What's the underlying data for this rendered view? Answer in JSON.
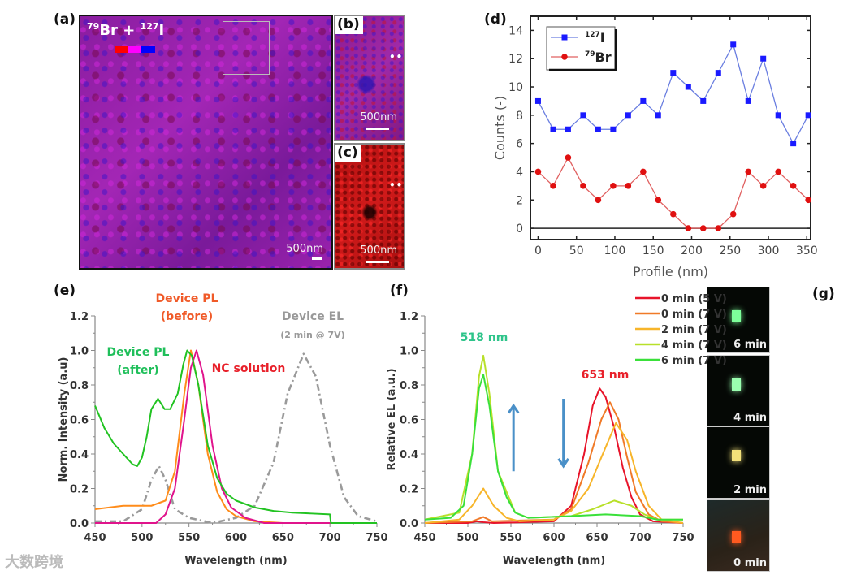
{
  "panels": {
    "a": {
      "label": "(a)",
      "title_mass1": "79",
      "title_el1": "Br",
      "title_plus": "+",
      "title_mass2": "127",
      "title_el2": "I",
      "scale": "500nm",
      "colorbar": [
        "#ff0000",
        "#ff00ff",
        "#0000ff"
      ]
    },
    "b": {
      "label": "(b)",
      "scale": "500nm",
      "marker": "••••"
    },
    "c": {
      "label": "(c)",
      "scale": "500nm",
      "marker": "••••"
    },
    "d": {
      "label": "(d)"
    },
    "e": {
      "label": "(e)"
    },
    "f": {
      "label": "(f)"
    },
    "g": {
      "label": "(g)",
      "photos": [
        {
          "caption": "6 min",
          "glow": "#7dff9a"
        },
        {
          "caption": "4 min",
          "glow": "#9affb0"
        },
        {
          "caption": "2 min",
          "glow": "#f2e07a"
        },
        {
          "caption": "0 min",
          "glow": "#ff5a20"
        }
      ]
    }
  },
  "watermark": "大数跨境",
  "chart_data": [
    {
      "id": "d",
      "type": "line",
      "xlabel": "Profile (nm)",
      "ylabel": "Counts (-)",
      "xlim": [
        -10,
        355
      ],
      "ylim": [
        -0.8,
        15
      ],
      "xticks": [
        0,
        50,
        100,
        150,
        200,
        250,
        300,
        350
      ],
      "yticks": [
        0,
        2,
        4,
        6,
        8,
        10,
        12,
        14
      ],
      "legend": "top-left",
      "x": [
        0,
        19.6,
        39.1,
        58.7,
        78.2,
        97.8,
        117.3,
        136.9,
        156.4,
        176,
        195.6,
        215.1,
        234.7,
        254.2,
        273.8,
        293.3,
        312.9,
        332.4,
        352
      ],
      "series": [
        {
          "mass": "127",
          "element": "I",
          "color": "#1a1aff",
          "line": "#6a7ee0",
          "marker": "square",
          "values": [
            9,
            7,
            7,
            8,
            7,
            7,
            8,
            9,
            8,
            11,
            10,
            9,
            11,
            13,
            9,
            12,
            8,
            6,
            8
          ]
        },
        {
          "mass": "79",
          "element": "Br",
          "color": "#e01010",
          "line": "#e06060",
          "marker": "circle",
          "values": [
            4,
            3,
            5,
            3,
            2,
            3,
            3,
            4,
            2,
            1,
            0,
            0,
            0,
            1,
            4,
            3,
            4,
            3,
            2
          ]
        }
      ]
    },
    {
      "id": "e",
      "type": "line",
      "xlabel": "Wavelength (nm)",
      "ylabel": "Norm. Intensity (a.u)",
      "xlim": [
        450,
        750
      ],
      "ylim": [
        0,
        1.2
      ],
      "xticks": [
        450,
        500,
        550,
        600,
        650,
        700,
        750
      ],
      "yticks": [
        "0.0",
        "0.2",
        "0.4",
        "0.6",
        "0.8",
        "1.0",
        "1.2"
      ],
      "series": [
        {
          "name": "Device PL (after)",
          "lines": [
            "Device PL",
            "(after)"
          ],
          "color": "#22c322",
          "label_color": "#1fbf5a",
          "dash": "",
          "points": [
            [
              450,
              0.68
            ],
            [
              460,
              0.55
            ],
            [
              470,
              0.46
            ],
            [
              480,
              0.4
            ],
            [
              490,
              0.34
            ],
            [
              495,
              0.33
            ],
            [
              500,
              0.38
            ],
            [
              505,
              0.5
            ],
            [
              510,
              0.66
            ],
            [
              517,
              0.72
            ],
            [
              524,
              0.66
            ],
            [
              530,
              0.66
            ],
            [
              538,
              0.75
            ],
            [
              544,
              0.92
            ],
            [
              548,
              1.0
            ],
            [
              553,
              0.97
            ],
            [
              560,
              0.8
            ],
            [
              570,
              0.45
            ],
            [
              580,
              0.26
            ],
            [
              590,
              0.17
            ],
            [
              600,
              0.13
            ],
            [
              620,
              0.09
            ],
            [
              640,
              0.07
            ],
            [
              660,
              0.06
            ],
            [
              680,
              0.055
            ],
            [
              700,
              0.05
            ],
            [
              701,
              0.0
            ],
            [
              750,
              0.0
            ]
          ]
        },
        {
          "name": "Device PL (before)",
          "lines": [
            "Device PL",
            "(before)"
          ],
          "color": "#ff8c1a",
          "label_color": "#f05a28",
          "dash": "",
          "points": [
            [
              450,
              0.08
            ],
            [
              480,
              0.1
            ],
            [
              510,
              0.1
            ],
            [
              525,
              0.13
            ],
            [
              535,
              0.3
            ],
            [
              545,
              0.75
            ],
            [
              552,
              1.0
            ],
            [
              560,
              0.8
            ],
            [
              570,
              0.4
            ],
            [
              580,
              0.18
            ],
            [
              590,
              0.08
            ],
            [
              600,
              0.04
            ],
            [
              620,
              0.01
            ],
            [
              650,
              0.0
            ],
            [
              750,
              0.0
            ]
          ]
        },
        {
          "name": "NC solution",
          "lines": [
            "NC solution"
          ],
          "color": "#e0148c",
          "label_color": "#e8202a",
          "dash": "",
          "points": [
            [
              450,
              0
            ],
            [
              515,
              0
            ],
            [
              525,
              0.05
            ],
            [
              535,
              0.2
            ],
            [
              545,
              0.6
            ],
            [
              552,
              0.9
            ],
            [
              558,
              1.0
            ],
            [
              565,
              0.86
            ],
            [
              575,
              0.45
            ],
            [
              585,
              0.2
            ],
            [
              595,
              0.09
            ],
            [
              610,
              0.03
            ],
            [
              630,
              0.0
            ],
            [
              750,
              0.0
            ]
          ]
        },
        {
          "name": "Device EL (2 min @ 7V)",
          "lines": [
            "Device EL",
            "(2 min @ 7V)"
          ],
          "color": "#9a9a9a",
          "label_color": "#999999",
          "dash": "8 4 2 4",
          "points": [
            [
              450,
              0.01
            ],
            [
              480,
              0.01
            ],
            [
              500,
              0.08
            ],
            [
              510,
              0.25
            ],
            [
              518,
              0.33
            ],
            [
              525,
              0.25
            ],
            [
              535,
              0.08
            ],
            [
              550,
              0.03
            ],
            [
              575,
              0.0
            ],
            [
              600,
              0.03
            ],
            [
              620,
              0.1
            ],
            [
              640,
              0.35
            ],
            [
              655,
              0.75
            ],
            [
              672,
              0.98
            ],
            [
              685,
              0.85
            ],
            [
              700,
              0.45
            ],
            [
              715,
              0.15
            ],
            [
              730,
              0.04
            ],
            [
              750,
              0.01
            ]
          ]
        }
      ]
    },
    {
      "id": "f",
      "type": "line",
      "xlabel": "Wavelength (nm)",
      "ylabel": "Relative EL (a.u.)",
      "xlim": [
        450,
        750
      ],
      "ylim": [
        0,
        1.2
      ],
      "xticks": [
        450,
        500,
        550,
        600,
        650,
        700,
        750
      ],
      "yticks": [
        "0.0",
        "0.2",
        "0.4",
        "0.6",
        "0.8",
        "1.0",
        "1.2"
      ],
      "legend": "top-right",
      "annotations": [
        {
          "text": "518 nm",
          "color": "#2ec48a"
        },
        {
          "text": "653 nm",
          "color": "#e8202a"
        }
      ],
      "arrows": [
        {
          "direction": "up",
          "x": 553,
          "color": "#4a90c8"
        },
        {
          "direction": "down",
          "x": 611,
          "color": "#4a90c8"
        }
      ],
      "series": [
        {
          "name": "0 min (5 V)",
          "color": "#e8142a",
          "points": [
            [
              450,
              0
            ],
            [
              500,
              0
            ],
            [
              510,
              0.01
            ],
            [
              518,
              0.005
            ],
            [
              530,
              0
            ],
            [
              600,
              0.01
            ],
            [
              620,
              0.1
            ],
            [
              635,
              0.4
            ],
            [
              645,
              0.68
            ],
            [
              653,
              0.78
            ],
            [
              660,
              0.73
            ],
            [
              670,
              0.55
            ],
            [
              680,
              0.32
            ],
            [
              690,
              0.15
            ],
            [
              700,
              0.05
            ],
            [
              715,
              0.01
            ],
            [
              750,
              0
            ]
          ]
        },
        {
          "name": "0 min (7 V)",
          "color": "#f07a28",
          "points": [
            [
              450,
              0
            ],
            [
              505,
              0.01
            ],
            [
              518,
              0.035
            ],
            [
              528,
              0.01
            ],
            [
              600,
              0.02
            ],
            [
              620,
              0.08
            ],
            [
              640,
              0.35
            ],
            [
              655,
              0.6
            ],
            [
              665,
              0.7
            ],
            [
              675,
              0.6
            ],
            [
              685,
              0.38
            ],
            [
              695,
              0.18
            ],
            [
              710,
              0.05
            ],
            [
              725,
              0.01
            ],
            [
              750,
              0
            ]
          ]
        },
        {
          "name": "2 min (7 V)",
          "color": "#f7b52a",
          "points": [
            [
              450,
              0
            ],
            [
              490,
              0.02
            ],
            [
              505,
              0.1
            ],
            [
              518,
              0.2
            ],
            [
              530,
              0.1
            ],
            [
              545,
              0.03
            ],
            [
              560,
              0.01
            ],
            [
              600,
              0.02
            ],
            [
              620,
              0.07
            ],
            [
              640,
              0.2
            ],
            [
              655,
              0.38
            ],
            [
              672,
              0.58
            ],
            [
              685,
              0.48
            ],
            [
              695,
              0.3
            ],
            [
              710,
              0.1
            ],
            [
              725,
              0.02
            ],
            [
              750,
              0
            ]
          ]
        },
        {
          "name": "4 min (7 V)",
          "color": "#b8e02a",
          "points": [
            [
              450,
              0.02
            ],
            [
              490,
              0.06
            ],
            [
              505,
              0.4
            ],
            [
              513,
              0.85
            ],
            [
              518,
              0.97
            ],
            [
              525,
              0.75
            ],
            [
              535,
              0.3
            ],
            [
              545,
              0.18
            ],
            [
              555,
              0.06
            ],
            [
              570,
              0.03
            ],
            [
              620,
              0.04
            ],
            [
              645,
              0.08
            ],
            [
              670,
              0.13
            ],
            [
              690,
              0.1
            ],
            [
              705,
              0.05
            ],
            [
              720,
              0.02
            ],
            [
              750,
              0.02
            ]
          ]
        },
        {
          "name": "6 min (7 V)",
          "color": "#3ae03a",
          "points": [
            [
              450,
              0.02
            ],
            [
              480,
              0.03
            ],
            [
              495,
              0.1
            ],
            [
              505,
              0.4
            ],
            [
              513,
              0.78
            ],
            [
              518,
              0.86
            ],
            [
              525,
              0.68
            ],
            [
              535,
              0.3
            ],
            [
              545,
              0.15
            ],
            [
              555,
              0.06
            ],
            [
              570,
              0.03
            ],
            [
              620,
              0.04
            ],
            [
              660,
              0.05
            ],
            [
              700,
              0.04
            ],
            [
              720,
              0.02
            ],
            [
              750,
              0.02
            ]
          ]
        }
      ]
    }
  ]
}
